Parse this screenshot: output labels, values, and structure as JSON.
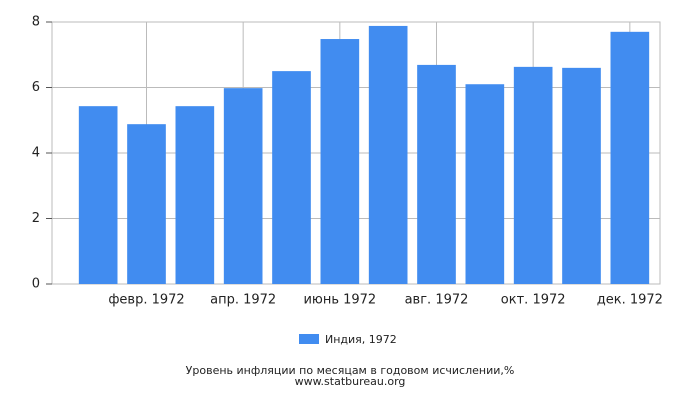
{
  "chart_data": {
    "type": "bar",
    "categories": [
      null,
      "февр. 1972",
      null,
      "апр. 1972",
      null,
      "июнь 1972",
      null,
      "авг. 1972",
      null,
      "окт. 1972",
      null,
      "дек. 1972"
    ],
    "series": [
      {
        "name": "Индия, 1972",
        "color": "#418cf0",
        "values": [
          5.43,
          4.88,
          5.43,
          5.98,
          6.5,
          7.48,
          7.88,
          6.69,
          6.1,
          6.63,
          6.6,
          7.7
        ]
      }
    ],
    "ylim": [
      0,
      8
    ],
    "yticks": [
      0,
      2,
      4,
      6,
      8
    ],
    "grid": true,
    "x_label": "Уровень инфляции по месяцам в годовом исчислении,%",
    "source": "www.statbureau.org"
  }
}
